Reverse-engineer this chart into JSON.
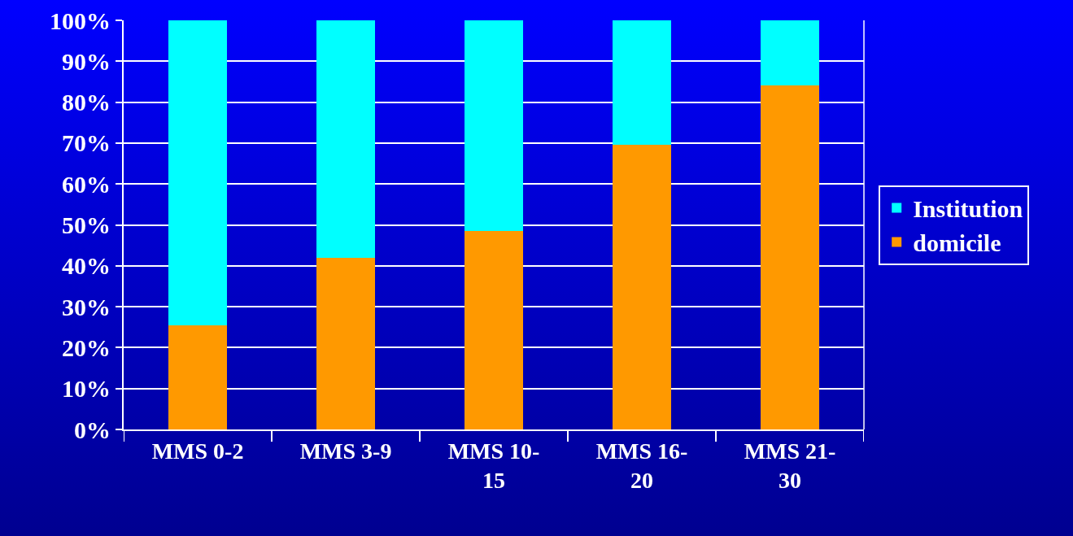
{
  "chart_data": {
    "type": "bar",
    "stacked": true,
    "categories": [
      "MMS 0-2",
      "MMS 3-9",
      "MMS 10-15",
      "MMS 16-20",
      "MMS 21-30"
    ],
    "series": [
      {
        "name": "domicile",
        "color": "#ff9900",
        "values": [
          25.5,
          42,
          48.5,
          69.5,
          84
        ]
      },
      {
        "name": "Institution",
        "color": "#00ffff",
        "values": [
          74.5,
          58,
          51.5,
          30.5,
          16
        ]
      }
    ],
    "ylim": [
      0,
      100
    ],
    "yticks": [
      {
        "value": 0,
        "label": "0%"
      },
      {
        "value": 10,
        "label": "10%"
      },
      {
        "value": 20,
        "label": "20%"
      },
      {
        "value": 30,
        "label": "30%"
      },
      {
        "value": 40,
        "label": "40%"
      },
      {
        "value": 50,
        "label": "50%"
      },
      {
        "value": 60,
        "label": "60%"
      },
      {
        "value": 70,
        "label": "70%"
      },
      {
        "value": 80,
        "label": "80%"
      },
      {
        "value": 90,
        "label": "90%"
      },
      {
        "value": 100,
        "label": "100%"
      }
    ],
    "grid": "y",
    "legend": "right"
  }
}
